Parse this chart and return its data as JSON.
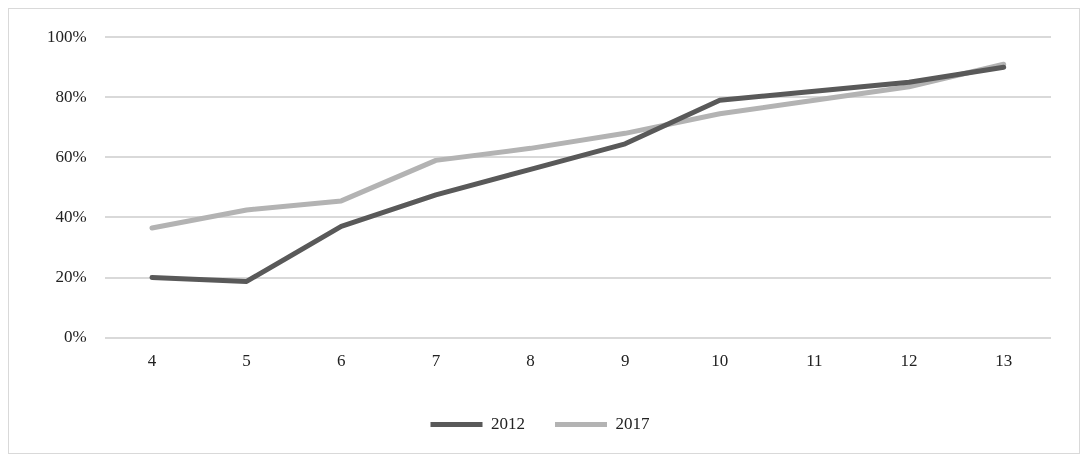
{
  "chart_data": {
    "type": "line",
    "categories": [
      "4",
      "5",
      "6",
      "7",
      "8",
      "9",
      "10",
      "11",
      "12",
      "13"
    ],
    "series": [
      {
        "name": "2012",
        "color": "#595959",
        "values": [
          20,
          18.7,
          37,
          47.5,
          56,
          64.5,
          79,
          82,
          85,
          90
        ]
      },
      {
        "name": "2017",
        "color": "#b3b3b3",
        "values": [
          36.5,
          42.5,
          45.5,
          59,
          63,
          68,
          74.5,
          79,
          83.5,
          91
        ]
      }
    ],
    "ylim": [
      0,
      100
    ],
    "yticks": [
      {
        "value": 0,
        "label": "0%"
      },
      {
        "value": 20,
        "label": "20%"
      },
      {
        "value": 40,
        "label": "40%"
      },
      {
        "value": 60,
        "label": "60%"
      },
      {
        "value": 80,
        "label": "80%"
      },
      {
        "value": 100,
        "label": "100%"
      }
    ],
    "grid": "y",
    "legend": "bottom",
    "marker": "none",
    "line_style": "solid"
  }
}
